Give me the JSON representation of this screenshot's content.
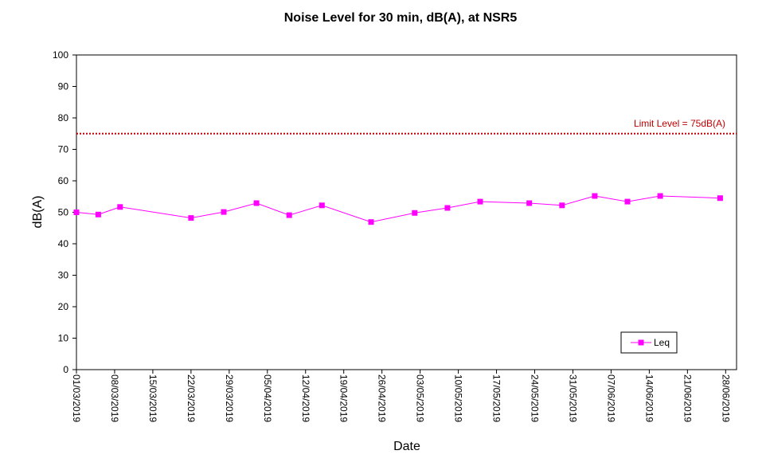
{
  "chart_data": {
    "type": "line",
    "title": "Noise Level for 30 min, dB(A), at NSR5",
    "xlabel": "Date",
    "ylabel": "dB(A)",
    "ylim": [
      0,
      100
    ],
    "yticks": [
      0,
      10,
      20,
      30,
      40,
      50,
      60,
      70,
      80,
      90,
      100
    ],
    "xlim": [
      "01/03/2019",
      "30/06/2019"
    ],
    "xticks": [
      "01/03/2019",
      "08/03/2019",
      "15/03/2019",
      "22/03/2019",
      "29/03/2019",
      "05/04/2019",
      "12/04/2019",
      "19/04/2019",
      "26/04/2019",
      "03/05/2019",
      "10/05/2019",
      "17/05/2019",
      "24/05/2019",
      "31/05/2019",
      "07/06/2019",
      "14/06/2019",
      "21/06/2019",
      "28/06/2019"
    ],
    "grid": false,
    "legend_position": "bottom-right",
    "series": [
      {
        "name": "Leq",
        "color": "#ff00ff",
        "marker": "square",
        "points": [
          {
            "x": "01/03/2019",
            "y": 50.0
          },
          {
            "x": "05/03/2019",
            "y": 49.3
          },
          {
            "x": "09/03/2019",
            "y": 51.7
          },
          {
            "x": "22/03/2019",
            "y": 48.2
          },
          {
            "x": "28/03/2019",
            "y": 50.1
          },
          {
            "x": "03/04/2019",
            "y": 52.9
          },
          {
            "x": "09/04/2019",
            "y": 49.1
          },
          {
            "x": "15/04/2019",
            "y": 52.2
          },
          {
            "x": "24/04/2019",
            "y": 46.9
          },
          {
            "x": "02/05/2019",
            "y": 49.8
          },
          {
            "x": "08/05/2019",
            "y": 51.4
          },
          {
            "x": "14/05/2019",
            "y": 53.4
          },
          {
            "x": "23/05/2019",
            "y": 52.9
          },
          {
            "x": "29/05/2019",
            "y": 52.2
          },
          {
            "x": "04/06/2019",
            "y": 55.2
          },
          {
            "x": "10/06/2019",
            "y": 53.4
          },
          {
            "x": "16/06/2019",
            "y": 55.2
          },
          {
            "x": "27/06/2019",
            "y": 54.5
          }
        ]
      }
    ],
    "reference_lines": [
      {
        "y": 75,
        "label": "Limit Level  = 75dB(A)",
        "color": "#c00000",
        "style": "dotted"
      }
    ]
  }
}
